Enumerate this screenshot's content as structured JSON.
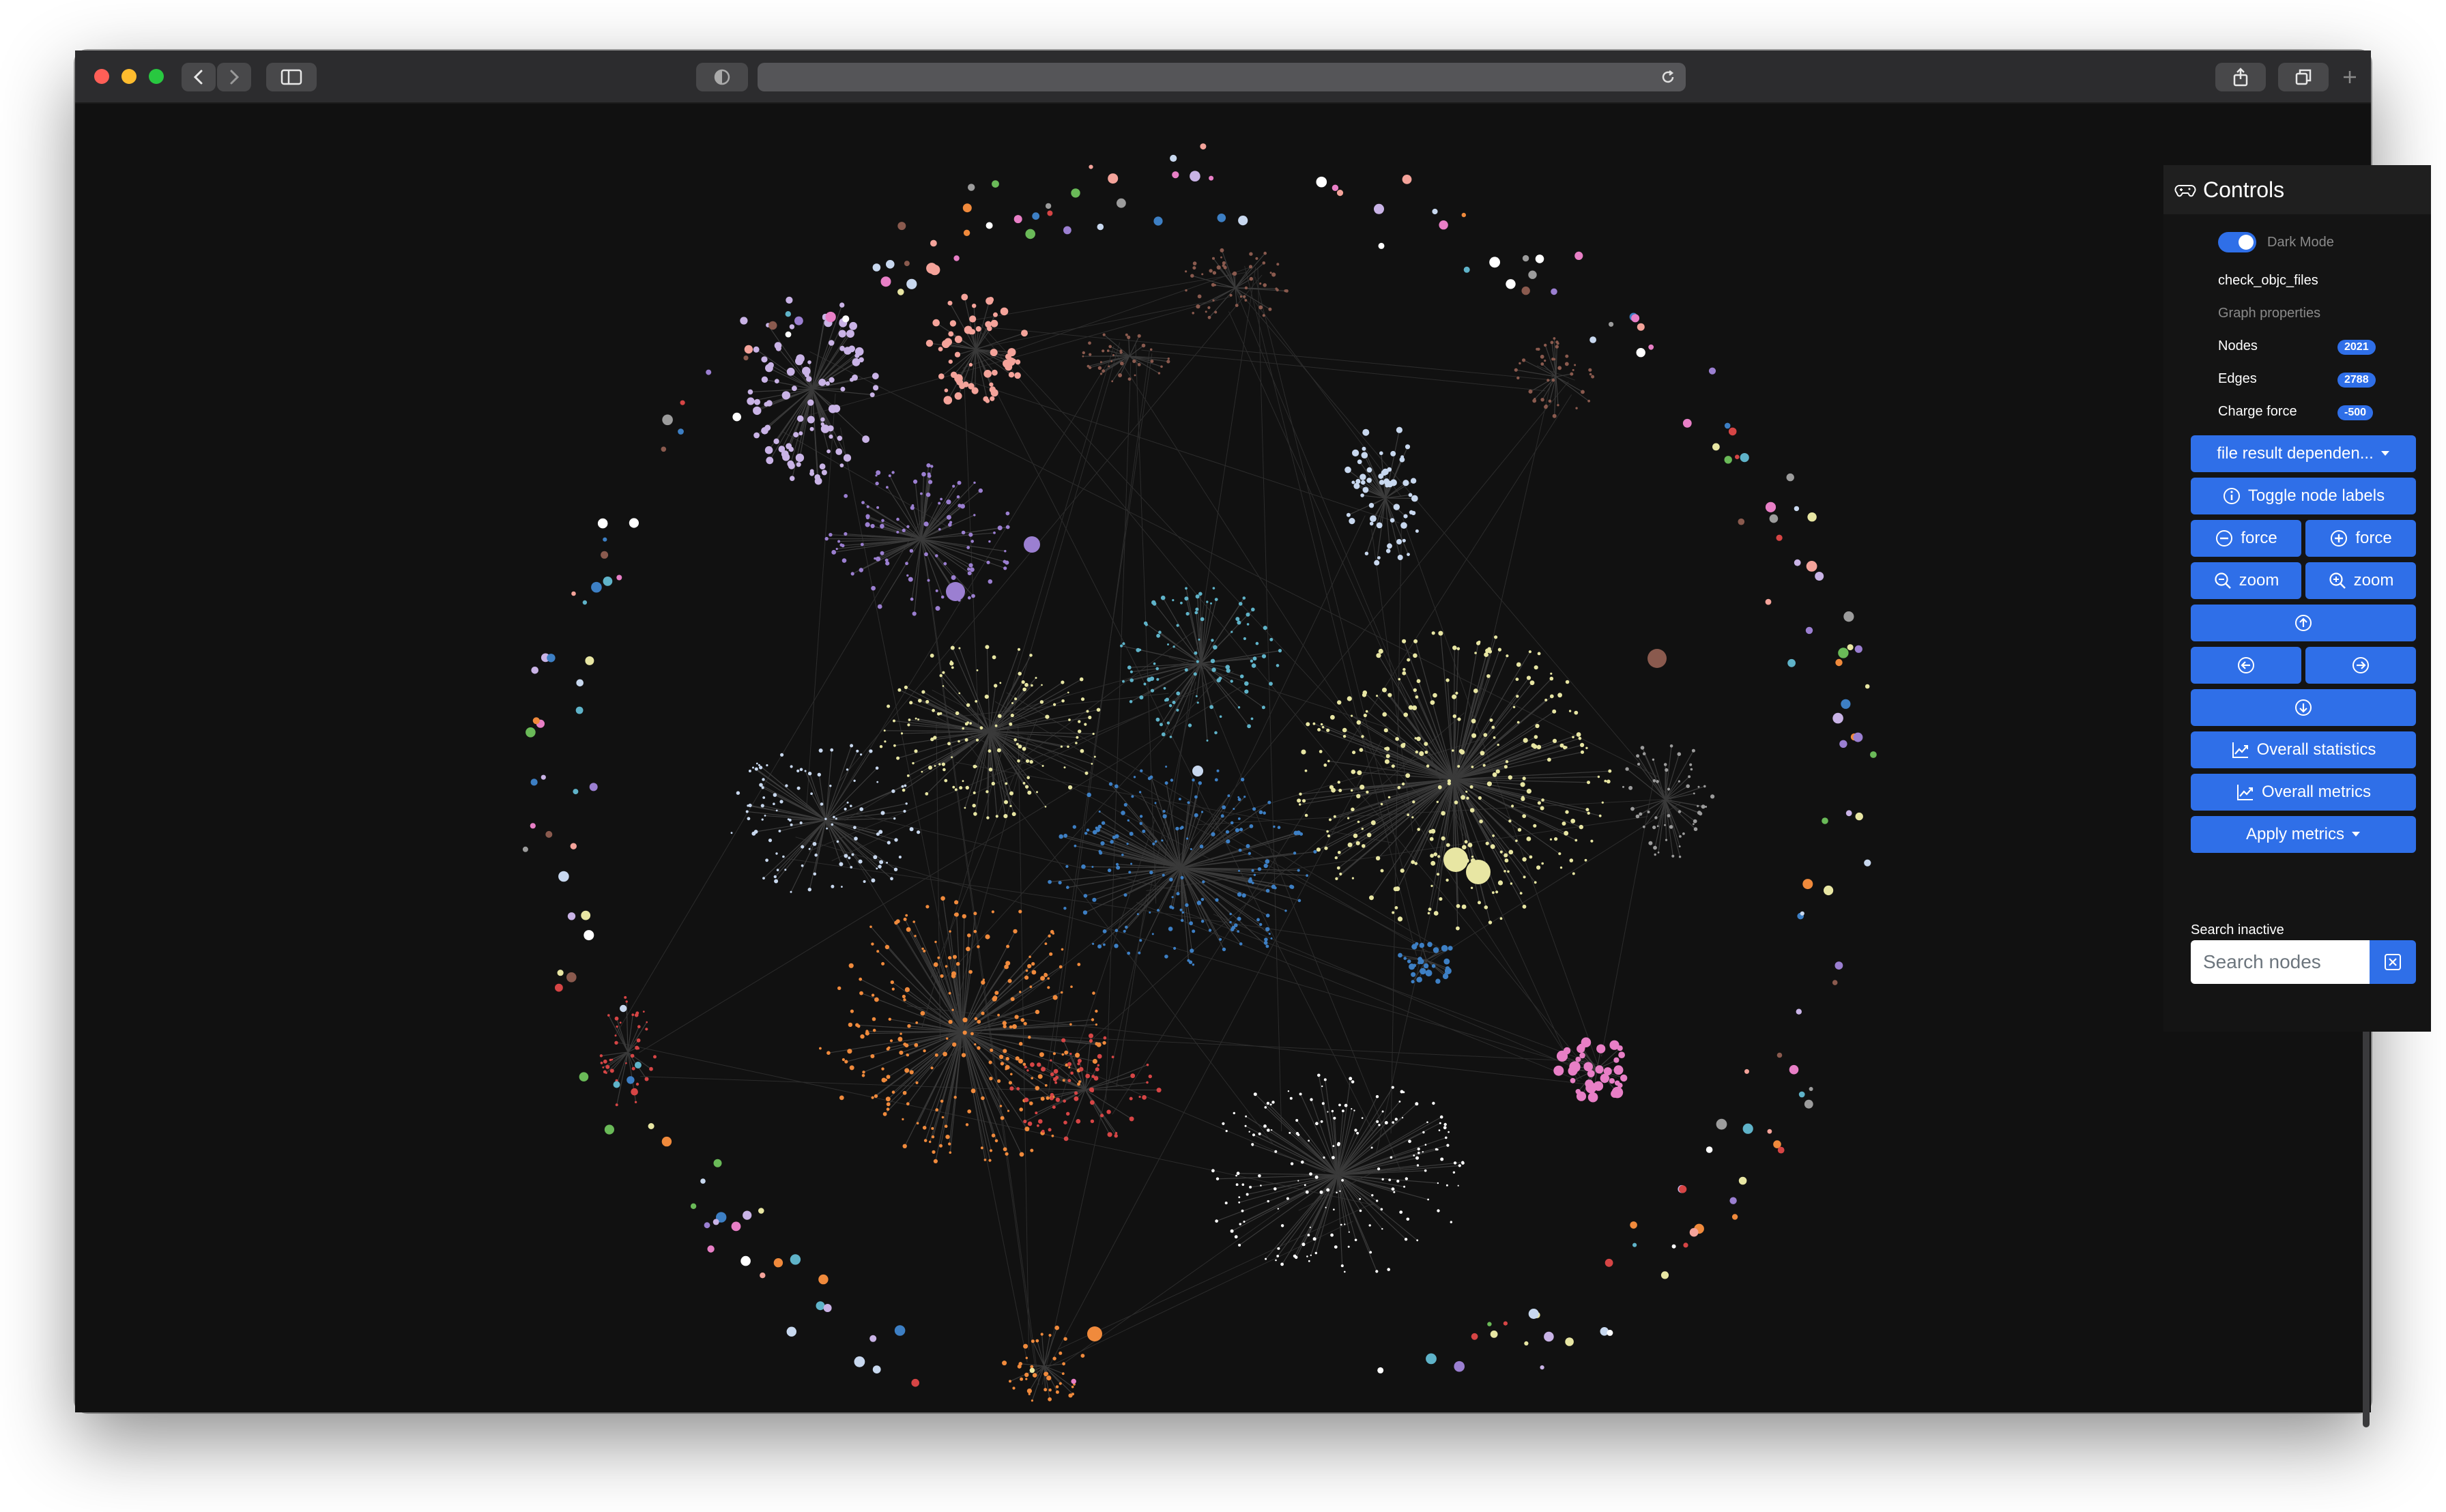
{
  "controls": {
    "title": "Controls",
    "dark_mode_label": "Dark Mode",
    "dark_mode_on": true,
    "graph_name": "check_objc_files",
    "graph_properties_label": "Graph properties",
    "nodes_label": "Nodes",
    "nodes_value": "2021",
    "edges_label": "Edges",
    "edges_value": "2788",
    "charge_label": "Charge force",
    "charge_value": "-500",
    "dropdown_label": "file result dependen...",
    "toggle_labels": "Toggle node labels",
    "force_minus": "force",
    "force_plus": "force",
    "zoom_out": "zoom",
    "zoom_in": "zoom",
    "overall_statistics": "Overall statistics",
    "overall_metrics": "Overall metrics",
    "apply_metrics": "Apply metrics",
    "search_label": "Search inactive",
    "search_placeholder": "Search nodes"
  },
  "graph": {
    "cluster_colors": [
      "#c9b3e6",
      "#f4a39a",
      "#9b7fd1",
      "#5fb3c9",
      "#3d7fc4",
      "#e8e6a3",
      "#f08a3c",
      "#d64545",
      "#e87fc6",
      "#c8d8ef",
      "#8a5a4e",
      "#9c9c9c",
      "#6aba58",
      "#ffffff"
    ]
  }
}
